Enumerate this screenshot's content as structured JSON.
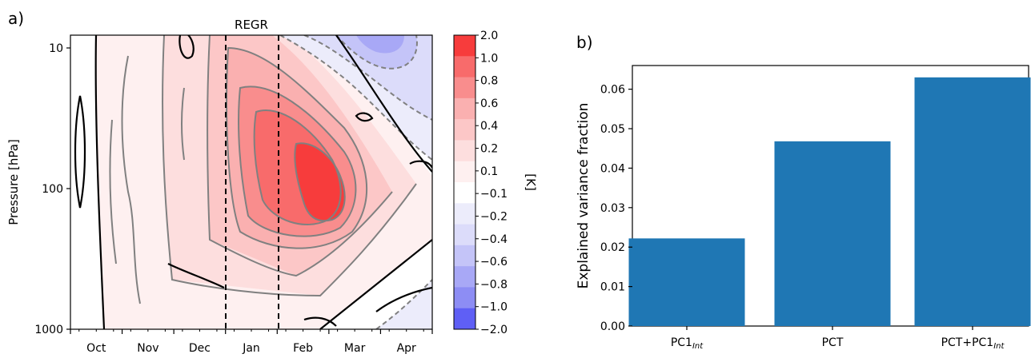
{
  "panel_a": {
    "label": "a)",
    "title": "REGR",
    "ylabel": "Pressure [hPa]",
    "yticks": [
      "10",
      "100",
      "1000"
    ],
    "months": [
      "Oct",
      "Nov",
      "Dec",
      "Jan",
      "Feb",
      "Mar",
      "Apr"
    ],
    "colorbar": {
      "label": "[K]",
      "levels": [
        "2.0",
        "1.0",
        "0.8",
        "0.6",
        "0.4",
        "0.2",
        "0.1",
        "−0.1",
        "−0.2",
        "−0.4",
        "−0.6",
        "−0.8",
        "−1.0",
        "−2.0"
      ],
      "colors": [
        "#f73c3c",
        "#f86b6b",
        "#f98d8d",
        "#fab0b0",
        "#fcc7c7",
        "#fddede",
        "#fef0f0",
        "#ffffff",
        "#ececfb",
        "#dcdcfa",
        "#c4c4f8",
        "#a8a8f6",
        "#8d8df4",
        "#5f5ff5"
      ]
    }
  },
  "panel_b": {
    "label": "b)",
    "ylabel": "Explained variance fraction",
    "bar_color": "#1f77b4"
  },
  "chart_data": [
    {
      "type": "heatmap",
      "title": "REGR",
      "xlabel": "",
      "ylabel": "Pressure [hPa]",
      "x_categories": [
        "Oct",
        "Nov",
        "Dec",
        "Jan",
        "Feb",
        "Mar",
        "Apr"
      ],
      "y_scale": "log",
      "ylim": [
        1000,
        10
      ],
      "yticks": [
        10,
        100,
        1000
      ],
      "colorbar_label": "[K]",
      "colorbar_levels": [
        2.0,
        1.0,
        0.8,
        0.6,
        0.4,
        0.2,
        0.1,
        -0.1,
        -0.2,
        -0.4,
        -0.6,
        -0.8,
        -1.0,
        -2.0
      ],
      "annotations": [
        "dashed vertical line near start of Jan",
        "dashed vertical line near mid Jan"
      ]
    },
    {
      "type": "bar",
      "categories": [
        "PC1",
        "PCT",
        "PCT+PC1"
      ],
      "category_subscripts": [
        "Int",
        "",
        "Int"
      ],
      "values": [
        0.0222,
        0.0468,
        0.063
      ],
      "ylabel": "Explained variance fraction",
      "xlabel": "",
      "ylim": [
        0.0,
        0.066
      ],
      "yticks": [
        "0.00",
        "0.01",
        "0.02",
        "0.03",
        "0.04",
        "0.05",
        "0.06"
      ]
    }
  ]
}
